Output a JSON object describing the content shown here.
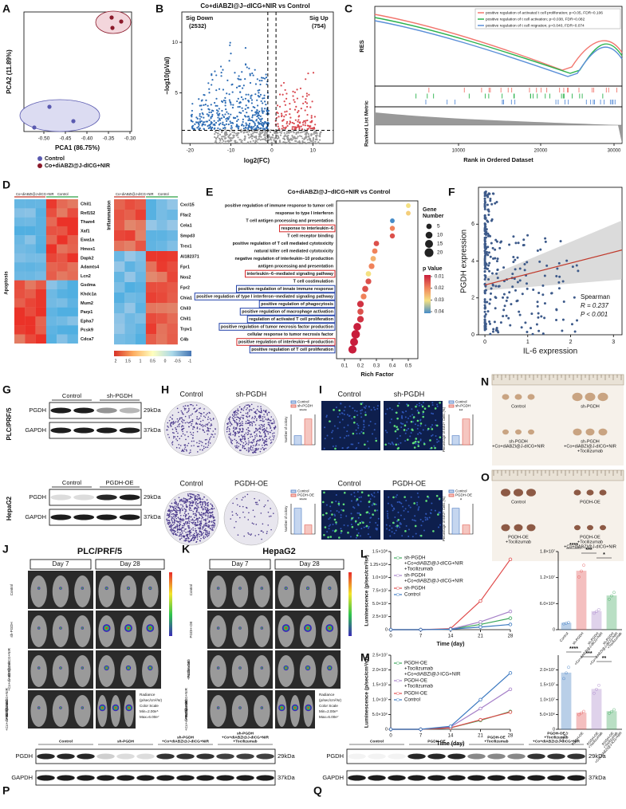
{
  "figure": {
    "A": {
      "letter": "A",
      "xlabel": "PCA1 (86.75%)",
      "ylabel": "PCA2 (11.89%)",
      "xticks": [
        "-0.50",
        "-0.45",
        "-0.40",
        "-0.35",
        "-0.30"
      ],
      "legend": [
        "Control",
        "Co+diABZI@J-dICG+NIR"
      ]
    },
    "B": {
      "letter": "B",
      "title": "Co+diABZI@J−dICG+NIR vs Control",
      "down": "Sig Down",
      "down_count": "(2532)",
      "up": "Sig Up",
      "up_count": "(754)",
      "xlabel": "log2(FC)",
      "ylabel": "−log10(pVal)",
      "xticks": [
        "-20",
        "-10",
        "0",
        "10"
      ],
      "yticks": [
        "5",
        "10"
      ]
    },
    "C": {
      "letter": "C",
      "legend": [
        {
          "name": "positive regulation of activated t cell proliferation; p=0.05, FDR=0.106",
          "color": "#f2766e"
        },
        {
          "name": "positive regulation of t cell activation; p=0.038, FDR=0.082",
          "color": "#2bb24c"
        },
        {
          "name": "positive regulation of t cell migration; p=0.040, FDR=0.074",
          "color": "#5b8fd8"
        }
      ],
      "ylabel": "RES",
      "ylabel2": "Ranked List Metric",
      "xlabel": "Rank in Ordered Dataset",
      "xticks": [
        "10000",
        "20000",
        "30000"
      ]
    },
    "D": {
      "letter": "D",
      "left_groups": [
        "Co+diABZI@J-dICG+NIR",
        "Control"
      ],
      "right_groups": [
        "Co+diABZI@J-dICG+NIR",
        "Control"
      ],
      "left_label": "Apoptosis",
      "right_label": "Inflammation",
      "left_genes": [
        "Chil1",
        "Rnf152",
        "Tham4",
        "Xaf1",
        "Ewa1a",
        "Hmox1",
        "Dapk2",
        "Adamts4",
        "Lcn2",
        "Gsdma",
        "Khdc1a",
        "Mum2",
        "Parp1",
        "Epha7",
        "Pcsk9",
        "Cdca7"
      ],
      "right_genes": [
        "Cxcl15",
        "Ffar2",
        "Cela1",
        "Smpd3",
        "Trex1",
        "AI182371",
        "Fpr1",
        "Nos2",
        "Fpr2",
        "Chia1",
        "Chil3",
        "Chil1",
        "Trpv1",
        "C4b"
      ],
      "scale": [
        "2",
        "1.5",
        "1",
        "0.5",
        "0",
        "-0.5",
        "-1"
      ]
    },
    "E": {
      "letter": "E",
      "title": "Co+diABZI@J−dICG+NIR vs Control",
      "xlabel": "Rich Factor",
      "xticks": [
        0.1,
        0.2,
        0.3,
        0.4,
        0.5
      ],
      "size_title": [
        "Gene",
        "Number"
      ],
      "sizes": [
        5,
        10,
        15,
        20
      ],
      "p_title": "p Value",
      "p_ticks": [
        0.01,
        0.02,
        0.03,
        0.04
      ],
      "terms": [
        {
          "term": "positive regulation of immune response to tumor cell",
          "rich": 0.5,
          "count": 3,
          "p": 0.03
        },
        {
          "term": "response to type I interferon",
          "rich": 0.5,
          "count": 3,
          "p": 0.028
        },
        {
          "term": "T cell antigen processing and presentation",
          "rich": 0.4,
          "count": 3,
          "p": 0.04
        },
        {
          "term": "response to interleukin−6",
          "rich": 0.4,
          "count": 4,
          "p": 0.02,
          "box": "#d62728"
        },
        {
          "term": "T cell receptor binding",
          "rich": 0.4,
          "count": 4,
          "p": 0.015
        },
        {
          "term": "positive regulation of T cell mediated cytotoxicity",
          "rich": 0.3,
          "count": 5,
          "p": 0.015
        },
        {
          "term": "natural killer cell mediated cytotoxicity",
          "rich": 0.29,
          "count": 5,
          "p": 0.02
        },
        {
          "term": "negative regulation of interleukin−10 production",
          "rich": 0.28,
          "count": 5,
          "p": 0.025
        },
        {
          "term": "antigen processing and presentation",
          "rich": 0.27,
          "count": 6,
          "p": 0.02
        },
        {
          "term": "interleukin−6−mediated signaling pathway",
          "rich": 0.25,
          "count": 5,
          "p": 0.03,
          "box": "#d62728"
        },
        {
          "term": "T cell costimulation",
          "rich": 0.25,
          "count": 6,
          "p": 0.015
        },
        {
          "term": "positive regulation of innate immune response",
          "rich": 0.23,
          "count": 7,
          "p": 0.015,
          "box": "#1f3fa8"
        },
        {
          "term": "positive regulation of type I interferon−mediated signaling pathway",
          "rich": 0.22,
          "count": 6,
          "p": 0.02,
          "box": "#1f3fa8"
        },
        {
          "term": "positive regulation of phagocytosis",
          "rich": 0.2,
          "count": 9,
          "p": 0.012,
          "box": "#1f3fa8"
        },
        {
          "term": "positive regulation of macrophage activation",
          "rich": 0.2,
          "count": 7,
          "p": 0.015,
          "box": "#1f3fa8"
        },
        {
          "term": "regulation of activated T cell proliferation",
          "rich": 0.2,
          "count": 9,
          "p": 0.012,
          "box": "#1f3fa8"
        },
        {
          "term": "positive regulation of tumor necrosis factor production",
          "rich": 0.18,
          "count": 14,
          "p": 0.01,
          "box": "#1f3fa8"
        },
        {
          "term": "cellular response to tumor necrosis factor",
          "rich": 0.17,
          "count": 18,
          "p": 0.01
        },
        {
          "term": "positive regulation of interleukin−6 production",
          "rich": 0.16,
          "count": 15,
          "p": 0.01,
          "box": "#d62728"
        },
        {
          "term": "positive regulation of T cell proliferation",
          "rich": 0.15,
          "count": 16,
          "p": 0.01,
          "box": "#1f3fa8"
        }
      ]
    },
    "F": {
      "letter": "F",
      "xlabel": "IL-6 expression",
      "ylabel": "PGDH expression",
      "xticks": [
        "0",
        "1",
        "2",
        "3"
      ],
      "yticks": [
        "0",
        "2",
        "4",
        "6"
      ],
      "stat": "Spearman",
      "r": "R = 0.237",
      "p": "P < 0.001"
    },
    "G": {
      "letter": "G",
      "cell1": "PLC/PRF/5",
      "cell2": "HepaG2",
      "g1": [
        "Control",
        "sh-PGDH"
      ],
      "g2": [
        "Control",
        "PGDH-OE"
      ],
      "bands1": [
        "PGDH",
        "GAPDH"
      ],
      "bands2": [
        "PGDH",
        "GAPDH"
      ],
      "kda1": [
        "29kDa",
        "37kDa"
      ],
      "kda2": [
        "29kDa",
        "37kDa"
      ]
    },
    "H": {
      "letter": "H",
      "top": [
        "Control",
        "sh-PGDH"
      ],
      "bottom": [
        "Control",
        "PGDH-OE"
      ],
      "legend_top": [
        "Control",
        "sh-PGDH"
      ],
      "legend_bottom": [
        "Control",
        "PGDH-OE"
      ],
      "ylabel_top": "Number of colony",
      "ylabel_bottom": "Number of colony",
      "sig_top": "****",
      "sig_bottom": "****"
    },
    "I": {
      "letter": "I",
      "top": [
        "Control",
        "sh-PGDH"
      ],
      "bottom": [
        "Control",
        "PGDH-OE"
      ],
      "legend_top": [
        "Control",
        "sh-PGDH"
      ],
      "legend_bottom": [
        "Control",
        "PGDH-OE"
      ],
      "ylabel_top": "Percentage of EdU+ Cells (%)",
      "ylabel_bottom": "Percentage of EdU+ Cells (%)",
      "sig_top": "**",
      "sig_bottom": "*"
    },
    "N": {
      "letter": "N",
      "labels": [
        [
          "Control"
        ],
        [
          "sh-PGDH"
        ],
        [
          "sh-PGDH",
          "+Co+diABZI@J-dICG+NIR"
        ],
        [
          "sh-PGDH",
          "+Co+diABZI@J-dICG+NIR",
          "+Tocilizumab"
        ]
      ]
    },
    "O": {
      "letter": "O",
      "labels": [
        [
          "Control"
        ],
        [
          "PGDH-OE"
        ],
        [
          "PGDH-OE",
          "+Tocilizumab"
        ],
        [
          "PGDH-OE",
          "+Tocilizumab",
          "+Co+diABZI@J-dICG+NIR"
        ]
      ]
    },
    "J": {
      "letter": "J",
      "title": "PLC/PRF/5",
      "days": [
        "Day 7",
        "Day 28"
      ],
      "rows": [
        [
          "Control"
        ],
        [
          "sh-PGDH"
        ],
        [
          "sh-PGDH",
          "+Co+diABZI@J-dICG+NIR"
        ],
        [
          "sh-PGDH",
          "+Co+diABZI@J-dICG+NIR",
          "+Tocilizumab"
        ]
      ],
      "radiance": [
        "Radiance",
        "(p/sec/cm²/sr)",
        "Color Scale",
        "Min=2.00e⁵",
        "Max=6.00e⁷"
      ]
    },
    "K": {
      "letter": "K",
      "title": "HepaG2",
      "days": [
        "Day 7",
        "Day 28"
      ],
      "rows": [
        [
          "Control"
        ],
        [
          "PGDH-OE"
        ],
        [
          "PGDH-OE",
          "+Tocilizumab"
        ],
        [
          "PGDH-OE",
          "+Tocilizumab",
          "+Co+diABZI@J-dICG+NIR"
        ]
      ],
      "radiance": [
        "Radiance",
        "(p/sec/cm²/sr)",
        "Color Scale",
        "Min=2.00e⁵",
        "Max=6.00e⁷"
      ]
    },
    "L": {
      "letter": "L",
      "xlabel": "Time (day)",
      "ylabel": "Luminescence (p/sec/cm²/sr)",
      "x": [
        0,
        7,
        14,
        21,
        28
      ],
      "xlim": [
        0,
        28
      ],
      "ylim": [
        0,
        150000000
      ],
      "yticks": [
        0,
        {
          "value": 25000000,
          "label": "2.5×10⁷"
        },
        {
          "value": 50000000,
          "label": "5.0×10⁷"
        },
        {
          "value": 75000000,
          "label": "7.5×10⁷"
        },
        {
          "value": 100000000,
          "label": "1.0×10⁸"
        },
        {
          "value": 125000000,
          "label": "1.25×10⁸"
        },
        {
          "value": 150000000,
          "label": "1.5×10⁸"
        }
      ],
      "series": [
        {
          "name": [
            "sh-PGDH",
            "+Co+diABZI@J-dICG+NIR",
            "+Tocilizumab"
          ],
          "color": "#3aa65a",
          "values": [
            0,
            0,
            1000000,
            10000000,
            22000000
          ]
        },
        {
          "name": [
            "sh-PGDH",
            "+Co+diABZI@J-dICG+NIR"
          ],
          "color": "#a57fc8",
          "values": [
            0,
            0,
            1000000,
            15000000,
            35000000
          ]
        },
        {
          "name": [
            "sh-PGDH"
          ],
          "color": "#e04b4b",
          "values": [
            0,
            0,
            2000000,
            55000000,
            135000000
          ]
        },
        {
          "name": [
            "Control"
          ],
          "color": "#3a78c0",
          "values": [
            0,
            0,
            1000000,
            5000000,
            10000000
          ]
        }
      ],
      "bars": {
        "categories": [
          [
            "Control"
          ],
          [
            "sh-PGDH"
          ],
          [
            "sh-PGDH",
            "+Co+diABZI@J-dICG+NIR"
          ],
          [
            "sh-PGDH",
            "+Co+diABZI@J-dICG+NIR",
            "+Tocilizumab"
          ]
        ],
        "values": [
          1500000,
          13500000,
          4200000,
          7800000
        ],
        "colors": [
          "#3a78c0",
          "#e04b4b",
          "#a57fc8",
          "#3aa65a"
        ],
        "ylim": [
          0,
          18000000
        ],
        "yticks": [
          0,
          {
            "value": 6000000,
            "label": "6.0×10⁶"
          },
          {
            "value": 12000000,
            "label": "1.2×10⁷"
          },
          {
            "value": 18000000,
            "label": "1.8×10⁷"
          }
        ],
        "sig": [
          "****",
          "***",
          "*"
        ]
      }
    },
    "M": {
      "letter": "M",
      "xlabel": "Time (day)",
      "ylabel": "Luminescence (p/sec/cm²/sr)",
      "x": [
        0,
        7,
        14,
        21,
        28
      ],
      "xlim": [
        0,
        28
      ],
      "ylim": [
        0,
        25000000
      ],
      "yticks": [
        0,
        {
          "value": 5000000,
          "label": "5.0×10⁶"
        },
        {
          "value": 10000000,
          "label": "1.0×10⁷"
        },
        {
          "value": 15000000,
          "label": "1.5×10⁷"
        },
        {
          "value": 20000000,
          "label": "2.0×10⁷"
        },
        {
          "value": 25000000,
          "label": "2.5×10⁷"
        }
      ],
      "series": [
        {
          "name": [
            "PGDH-OE",
            "+Tocilizumab",
            "+Co+diABZI@J-ICG+NIR"
          ],
          "color": "#3aa65a",
          "values": [
            0,
            0,
            500000,
            3000000,
            6000000
          ]
        },
        {
          "name": [
            "PGDH-OE",
            "+Tocilizumab"
          ],
          "color": "#a57fc8",
          "values": [
            0,
            0,
            800000,
            7000000,
            13500000
          ]
        },
        {
          "name": [
            "PGDH-OE"
          ],
          "color": "#e04b4b",
          "values": [
            0,
            0,
            500000,
            3200000,
            5800000
          ]
        },
        {
          "name": [
            "Control"
          ],
          "color": "#3a78c0",
          "values": [
            0,
            0,
            1000000,
            10000000,
            19000000
          ]
        }
      ],
      "bars": {
        "categories": [
          [
            "Control"
          ],
          [
            "PGDH-OE"
          ],
          [
            "PGDH-OE",
            "+Tocilizumab"
          ],
          [
            "PGDH-OE",
            "+Tocilizumab",
            "+Co+diABZI@J-ICG+NIR"
          ]
        ],
        "values": [
          19000000,
          5500000,
          13500000,
          6000000
        ],
        "colors": [
          "#3a78c0",
          "#e04b4b",
          "#a57fc8",
          "#3aa65a"
        ],
        "ylim": [
          0,
          25000000
        ],
        "yticks": [
          0,
          {
            "value": 5000000,
            "label": "5.0×10⁶"
          },
          {
            "value": 10000000,
            "label": "1.0×10⁷"
          },
          {
            "value": 15000000,
            "label": "1.5×10⁷"
          },
          {
            "value": 20000000,
            "label": "2.0×10⁷"
          }
        ],
        "sig": [
          "****",
          "***",
          "**"
        ]
      }
    },
    "P": {
      "letter": "P",
      "groups": [
        [
          "Control"
        ],
        [
          "sh-PGDH"
        ],
        [
          "sh-PGDH",
          "+Co+diABZI@J-dICG+NIR"
        ],
        [
          "sh-PGDH",
          "+Co+diABZI@J-dICG+NIR",
          "+Tocilizumab"
        ]
      ],
      "bands": [
        "PGDH",
        "GAPDH"
      ],
      "kda": [
        "29kDa",
        "37kDa"
      ]
    },
    "Q": {
      "letter": "Q",
      "groups": [
        [
          "Control"
        ],
        [
          "PGDH-OE"
        ],
        [
          "PGDH-OE",
          "+Tocilizumab"
        ],
        [
          "PGDH-OE",
          "+Tocilizumab",
          "+Co+diABZI@J-dICG+NIR"
        ]
      ],
      "bands": [
        "PGDH",
        "GAPDH"
      ],
      "kda": [
        "29kDa",
        "37kDa"
      ]
    }
  }
}
